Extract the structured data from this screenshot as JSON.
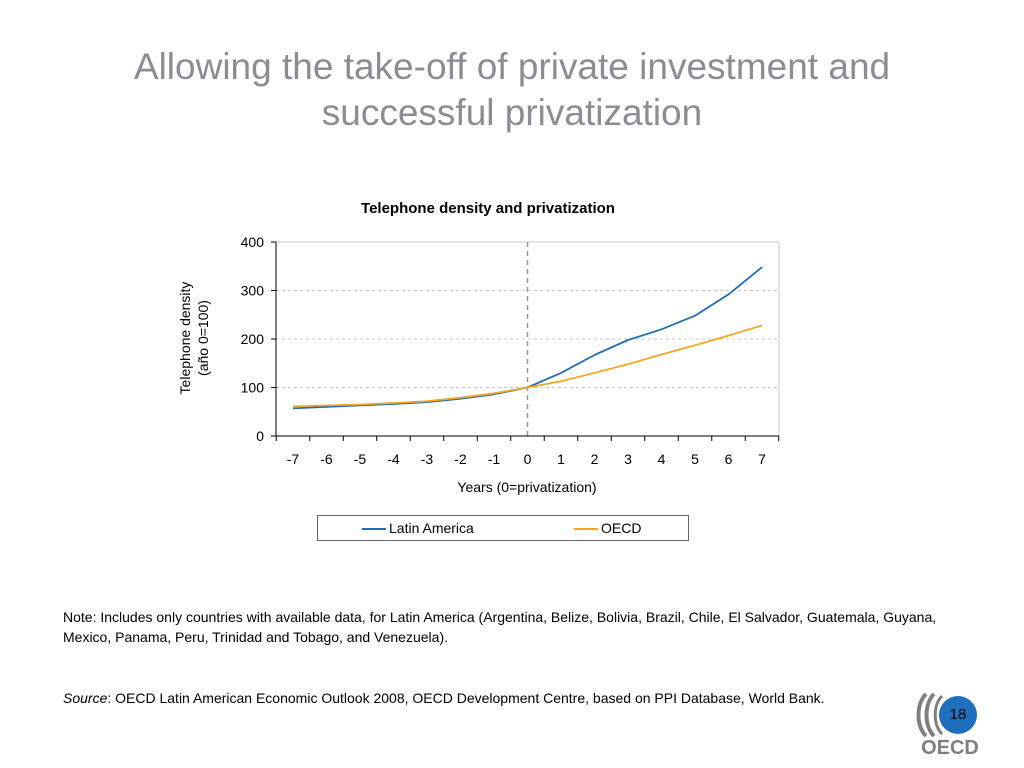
{
  "slide": {
    "title": "Allowing the take-off of private investment and successful privatization",
    "note": "Note: Includes only countries with available data, for Latin America (Argentina, Belize, Bolivia, Brazil, Chile, El Salvador, Guatemala, Guyana, Mexico, Panama, Peru, Trinidad and Tobago, and Venezuela).",
    "source_label": "Source",
    "source_text": ": OECD Latin American Economic Outlook 2008, OECD Development Centre, based on PPI Database, World Bank.",
    "page_number": "18",
    "logo_text": "OECD"
  },
  "colors": {
    "latin_america": "#1f6db5",
    "oecd": "#f5a623",
    "title": "#8a8d91",
    "page_badge": "#1f6fbf",
    "grid": "#c8c8c8",
    "divider": "#999999"
  },
  "chart_data": {
    "type": "line",
    "title": "Telephone density and privatization",
    "xlabel": "Years  (0=privatization)",
    "ylabel_line1": "Telephone density",
    "ylabel_line2": "(año 0=100)",
    "x": [
      -7,
      -6,
      -5,
      -4,
      -3,
      -2,
      -1,
      0,
      1,
      2,
      3,
      4,
      5,
      6,
      7
    ],
    "x_tick_labels": [
      "-7",
      "-6",
      "-5",
      "-4",
      "-3",
      "-2",
      "-1",
      "0",
      "1",
      "2",
      "3",
      "4",
      "5",
      "6",
      "7"
    ],
    "ylim": [
      0,
      400
    ],
    "y_ticks": [
      0,
      100,
      200,
      300,
      400
    ],
    "y_tick_labels": [
      "0",
      "100",
      "200",
      "300",
      "400"
    ],
    "grid": "horizontal dashed",
    "vertical_reference_x": 0,
    "legend_position": "bottom",
    "series": [
      {
        "name": "Latin America",
        "values": [
          57,
          60,
          63,
          66,
          70,
          77,
          86,
          100,
          130,
          167,
          198,
          220,
          248,
          292,
          348
        ]
      },
      {
        "name": "OECD",
        "values": [
          61,
          63,
          65,
          68,
          72,
          79,
          88,
          100,
          113,
          130,
          148,
          168,
          187,
          207,
          228
        ]
      }
    ]
  }
}
